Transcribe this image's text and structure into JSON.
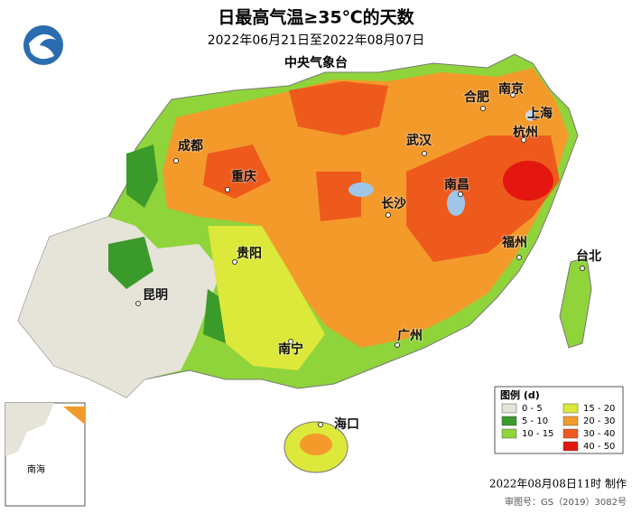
{
  "header": {
    "title": "日最高气温≥35℃的天数",
    "date_range": "2022年06月21日至2022年08月07日",
    "agency": "中央气象台"
  },
  "cities": [
    {
      "label": "成都"
    },
    {
      "label": "重庆"
    },
    {
      "label": "贵阳"
    },
    {
      "label": "昆明"
    },
    {
      "label": "南宁"
    },
    {
      "label": "广州"
    },
    {
      "label": "海口"
    },
    {
      "label": "长沙"
    },
    {
      "label": "武汉"
    },
    {
      "label": "南昌"
    },
    {
      "label": "福州"
    },
    {
      "label": "台北"
    },
    {
      "label": "合肥"
    },
    {
      "label": "南京"
    },
    {
      "label": "上海"
    },
    {
      "label": "杭州"
    }
  ],
  "legend": {
    "title": "图例 (d)",
    "items": [
      {
        "label": "0 - 5",
        "color": "#e6e3d8"
      },
      {
        "label": "15 - 20",
        "color": "#dce83a"
      },
      {
        "label": "5 - 10",
        "color": "#3a9a2a"
      },
      {
        "label": "20 - 30",
        "color": "#f39a2b"
      },
      {
        "label": "10 - 15",
        "color": "#8fd43a"
      },
      {
        "label": "30 - 40",
        "color": "#ee5a1c"
      },
      {
        "label": "",
        "color": null
      },
      {
        "label": "40 - 50",
        "color": "#e3170f"
      }
    ]
  },
  "footer": {
    "made": "2022年08月08日11时 制作",
    "approval": "审图号：GS（2019）3082号"
  },
  "inset": {
    "label": "南海"
  }
}
